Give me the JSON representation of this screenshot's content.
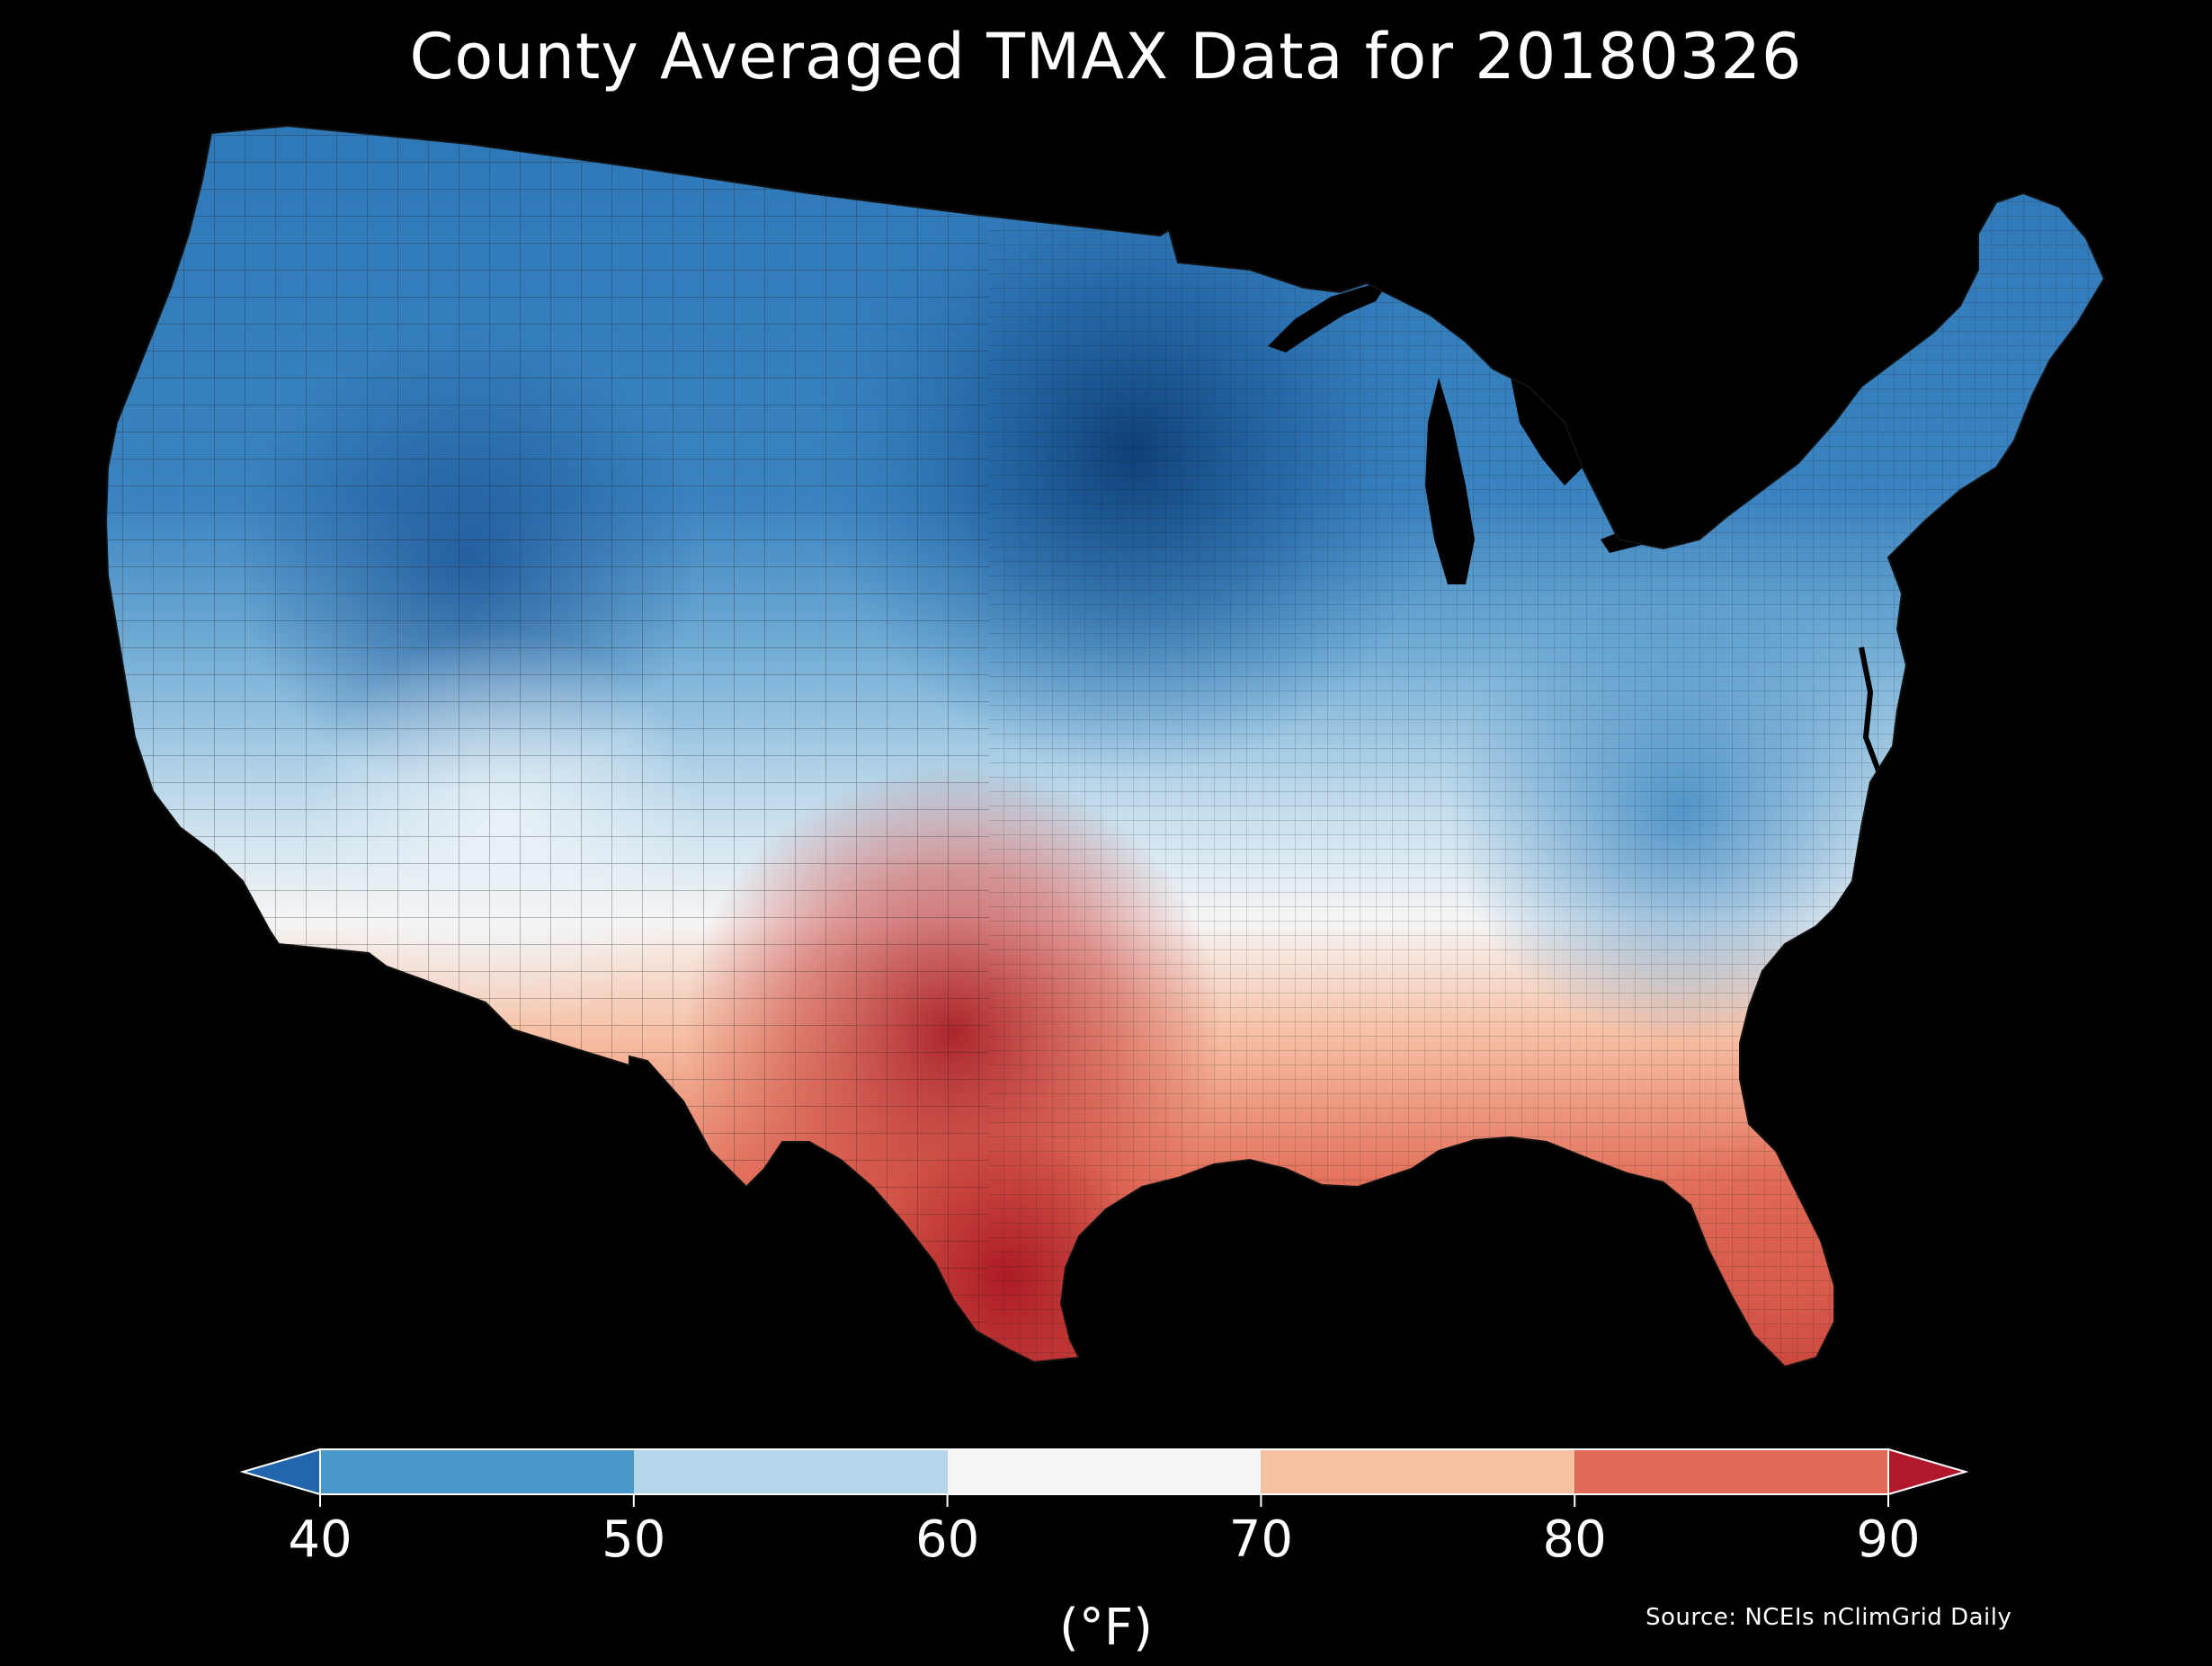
{
  "title": "County Averaged TMAX Data for 20180326",
  "source": "Source: NCEIs nClimGrid Daily",
  "colorbar": {
    "unit": "(°F)",
    "ticks": [
      "40",
      "50",
      "60",
      "70",
      "80",
      "90"
    ],
    "under_color": "#2166ac",
    "over_color": "#b2182b",
    "bins": [
      {
        "min": 40,
        "max": 50,
        "color": "#4a97c9"
      },
      {
        "min": 50,
        "max": 60,
        "color": "#b5d5e8"
      },
      {
        "min": 60,
        "max": 70,
        "color": "#f5f5f5"
      },
      {
        "min": 70,
        "max": 80,
        "color": "#f8c0a3"
      },
      {
        "min": 80,
        "max": 90,
        "color": "#df6b57"
      }
    ]
  },
  "colors": {
    "background": "#000000",
    "text": "#ffffff"
  }
}
